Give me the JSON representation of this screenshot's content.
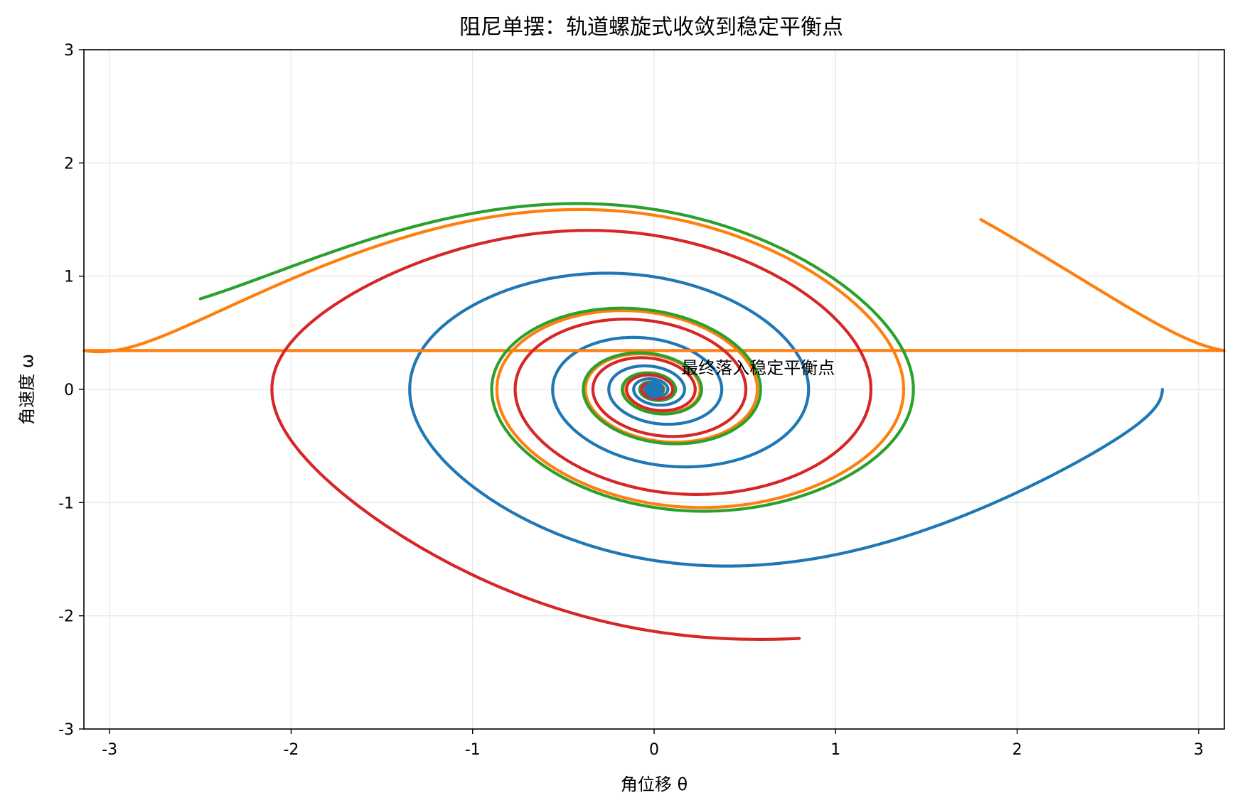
{
  "chart_data": {
    "type": "line",
    "title": "阻尼单摆：轨道螺旋式收敛到稳定平衡点",
    "xlabel": "角位移 θ",
    "ylabel": "角速度 ω",
    "xlim": [
      -3.1416,
      3.1416
    ],
    "ylim": [
      -3,
      3
    ],
    "xticks": [
      -3,
      -2,
      -1,
      0,
      1,
      2,
      3
    ],
    "xtick_labels": [
      "-3",
      "-2",
      "-1",
      "0",
      "1",
      "2",
      "3"
    ],
    "yticks": [
      -3,
      -2,
      -1,
      0,
      1,
      2,
      3
    ],
    "ytick_labels": [
      "-3",
      "-2",
      "-1",
      "0",
      "1",
      "2",
      "3"
    ],
    "grid": true,
    "annotation": {
      "text": "最终落入稳定平衡点",
      "x": 0.15,
      "y": 0.2
    },
    "equilibrium_marker": {
      "x": 0,
      "y": 0,
      "color": "#1f77b4"
    },
    "series": [
      {
        "color": "#1f77b4",
        "theta0": 2.8,
        "omega0": 0.0,
        "damping": 0.25
      },
      {
        "color": "#ff7f0e",
        "theta0": 1.8,
        "omega0": 1.5,
        "damping": 0.25,
        "wraps": true
      },
      {
        "color": "#2ca02c",
        "theta0": -2.5,
        "omega0": 0.8,
        "damping": 0.25
      },
      {
        "color": "#d62728",
        "theta0": 0.8,
        "omega0": -2.2,
        "damping": 0.25
      }
    ]
  }
}
